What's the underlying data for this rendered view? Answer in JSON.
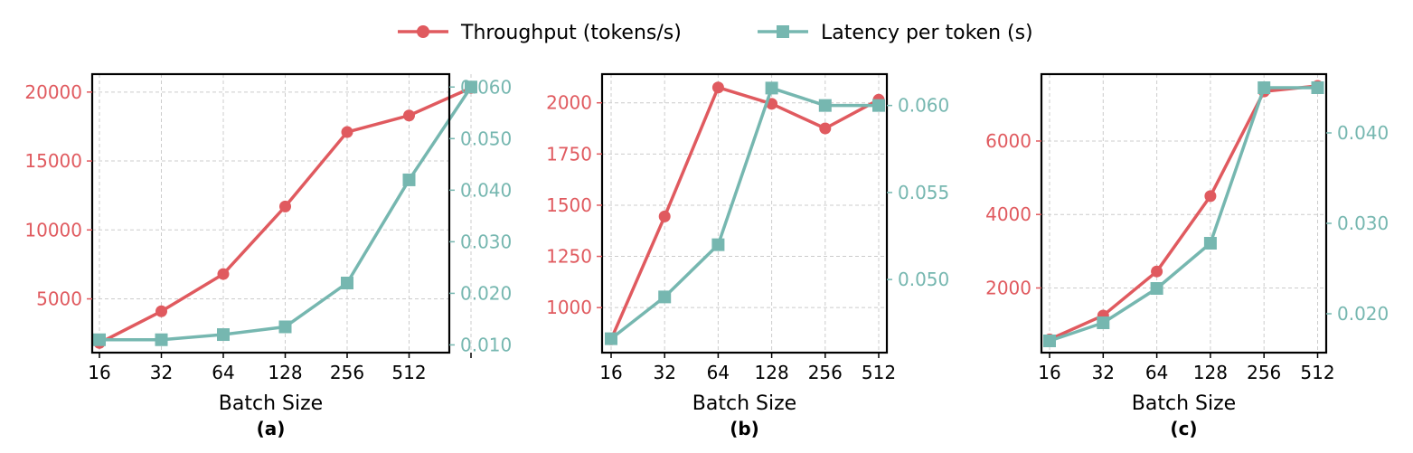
{
  "legend": {
    "throughput_label": "Throughput (tokens/s)",
    "latency_label": "Latency per token (s)"
  },
  "colors": {
    "throughput": "#e05a5f",
    "latency": "#76b7b0",
    "grid": "#cccccc"
  },
  "chart_data": [
    {
      "type": "line",
      "caption": "(a)",
      "xlabel": "Batch Size",
      "categories": [
        "16",
        "32",
        "64",
        "128",
        "256",
        "512",
        ""
      ],
      "series": [
        {
          "name": "Throughput (tokens/s)",
          "axis": "left",
          "values": [
            1800,
            4100,
            6800,
            11700,
            17100,
            18300,
            20300
          ]
        },
        {
          "name": "Latency per token (s)",
          "axis": "right",
          "values": [
            0.011,
            0.011,
            0.012,
            0.0135,
            0.022,
            0.042,
            0.06
          ]
        }
      ],
      "y_left": {
        "ticks": [
          5000,
          10000,
          15000,
          20000
        ],
        "tick_labels": [
          "5000",
          "10000",
          "15000",
          "20000"
        ],
        "range": [
          1100,
          21300
        ]
      },
      "y_right": {
        "ticks": [
          0.01,
          0.02,
          0.03,
          0.04,
          0.05,
          0.06
        ],
        "tick_labels": [
          "0.010",
          "0.020",
          "0.030",
          "0.040",
          "0.050",
          "0.060"
        ],
        "range": [
          0.0085,
          0.0625
        ]
      },
      "grid": true
    },
    {
      "type": "line",
      "caption": "(b)",
      "xlabel": "Batch Size",
      "categories": [
        "16",
        "32",
        "64",
        "128",
        "256",
        "512"
      ],
      "series": [
        {
          "name": "Throughput (tokens/s)",
          "axis": "left",
          "values": [
            845,
            1445,
            2075,
            1995,
            1875,
            2015
          ]
        },
        {
          "name": "Latency per token (s)",
          "axis": "right",
          "values": [
            0.0466,
            0.049,
            0.052,
            0.061,
            0.06,
            0.06
          ]
        }
      ],
      "y_left": {
        "ticks": [
          1000,
          1250,
          1500,
          1750,
          2000
        ],
        "tick_labels": [
          "1000",
          "1250",
          "1500",
          "1750",
          "2000"
        ],
        "range": [
          780,
          2140
        ]
      },
      "y_right": {
        "ticks": [
          0.05,
          0.055,
          0.06
        ],
        "tick_labels": [
          "0.050",
          "0.055",
          "0.060"
        ],
        "range": [
          0.0458,
          0.0618
        ]
      },
      "grid": true
    },
    {
      "type": "line",
      "caption": "(c)",
      "xlabel": "Batch Size",
      "categories": [
        "16",
        "32",
        "64",
        "128",
        "256",
        "512"
      ],
      "series": [
        {
          "name": "Throughput (tokens/s)",
          "axis": "left",
          "values": [
            600,
            1250,
            2450,
            4500,
            7350,
            7500
          ]
        },
        {
          "name": "Latency per token (s)",
          "axis": "right",
          "values": [
            0.017,
            0.019,
            0.0228,
            0.0278,
            0.045,
            0.045
          ]
        }
      ],
      "y_left": {
        "ticks": [
          2000,
          4000,
          6000
        ],
        "tick_labels": [
          "2000",
          "4000",
          "6000"
        ],
        "range": [
          240,
          7820
        ]
      },
      "y_right": {
        "ticks": [
          0.02,
          0.03,
          0.04
        ],
        "tick_labels": [
          "0.020",
          "0.030",
          "0.040"
        ],
        "range": [
          0.0157,
          0.0465
        ]
      },
      "grid": true
    }
  ]
}
